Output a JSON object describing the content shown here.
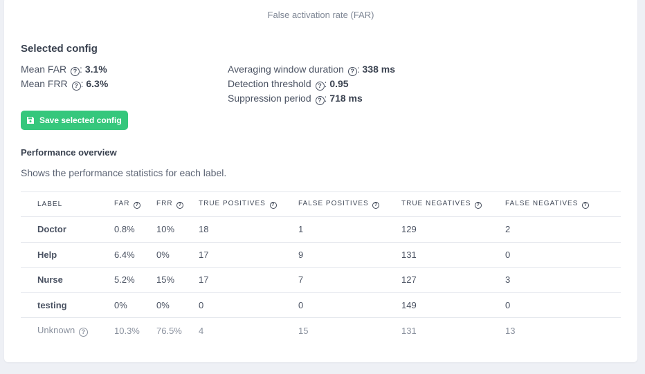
{
  "chart": {
    "xlabel": "False activation rate (FAR)"
  },
  "selected_config": {
    "title": "Selected config",
    "mean_far_label": "Mean FAR",
    "mean_far_value": "3.1%",
    "mean_frr_label": "Mean FRR",
    "mean_frr_value": "6.3%",
    "window_label": "Averaging window duration",
    "window_value": "338 ms",
    "threshold_label": "Detection threshold",
    "threshold_value": "0.95",
    "suppression_label": "Suppression period",
    "suppression_value": "718 ms",
    "separator": ":",
    "help_glyph": "?"
  },
  "save_button": {
    "label": "Save selected config",
    "icon": "floppy-disk-icon"
  },
  "performance": {
    "title": "Performance overview",
    "description": "Shows the performance statistics for each label.",
    "columns": [
      "LABEL",
      "FAR",
      "FRR",
      "TRUE POSITIVES",
      "FALSE POSITIVES",
      "TRUE NEGATIVES",
      "FALSE NEGATIVES"
    ],
    "rows": [
      [
        "Doctor",
        "0.8%",
        "10%",
        "18",
        "1",
        "129",
        "2"
      ],
      [
        "Help",
        "6.4%",
        "0%",
        "17",
        "9",
        "131",
        "0"
      ],
      [
        "Nurse",
        "5.2%",
        "15%",
        "17",
        "7",
        "127",
        "3"
      ],
      [
        "testing",
        "0%",
        "0%",
        "0",
        "0",
        "149",
        "0"
      ],
      [
        "Unknown",
        "10.3%",
        "76.5%",
        "4",
        "15",
        "131",
        "13"
      ]
    ]
  },
  "colors": {
    "accent_green": "#35c77c",
    "text": "#3a4250",
    "muted": "#8a919e",
    "background": "#eef0f5"
  }
}
